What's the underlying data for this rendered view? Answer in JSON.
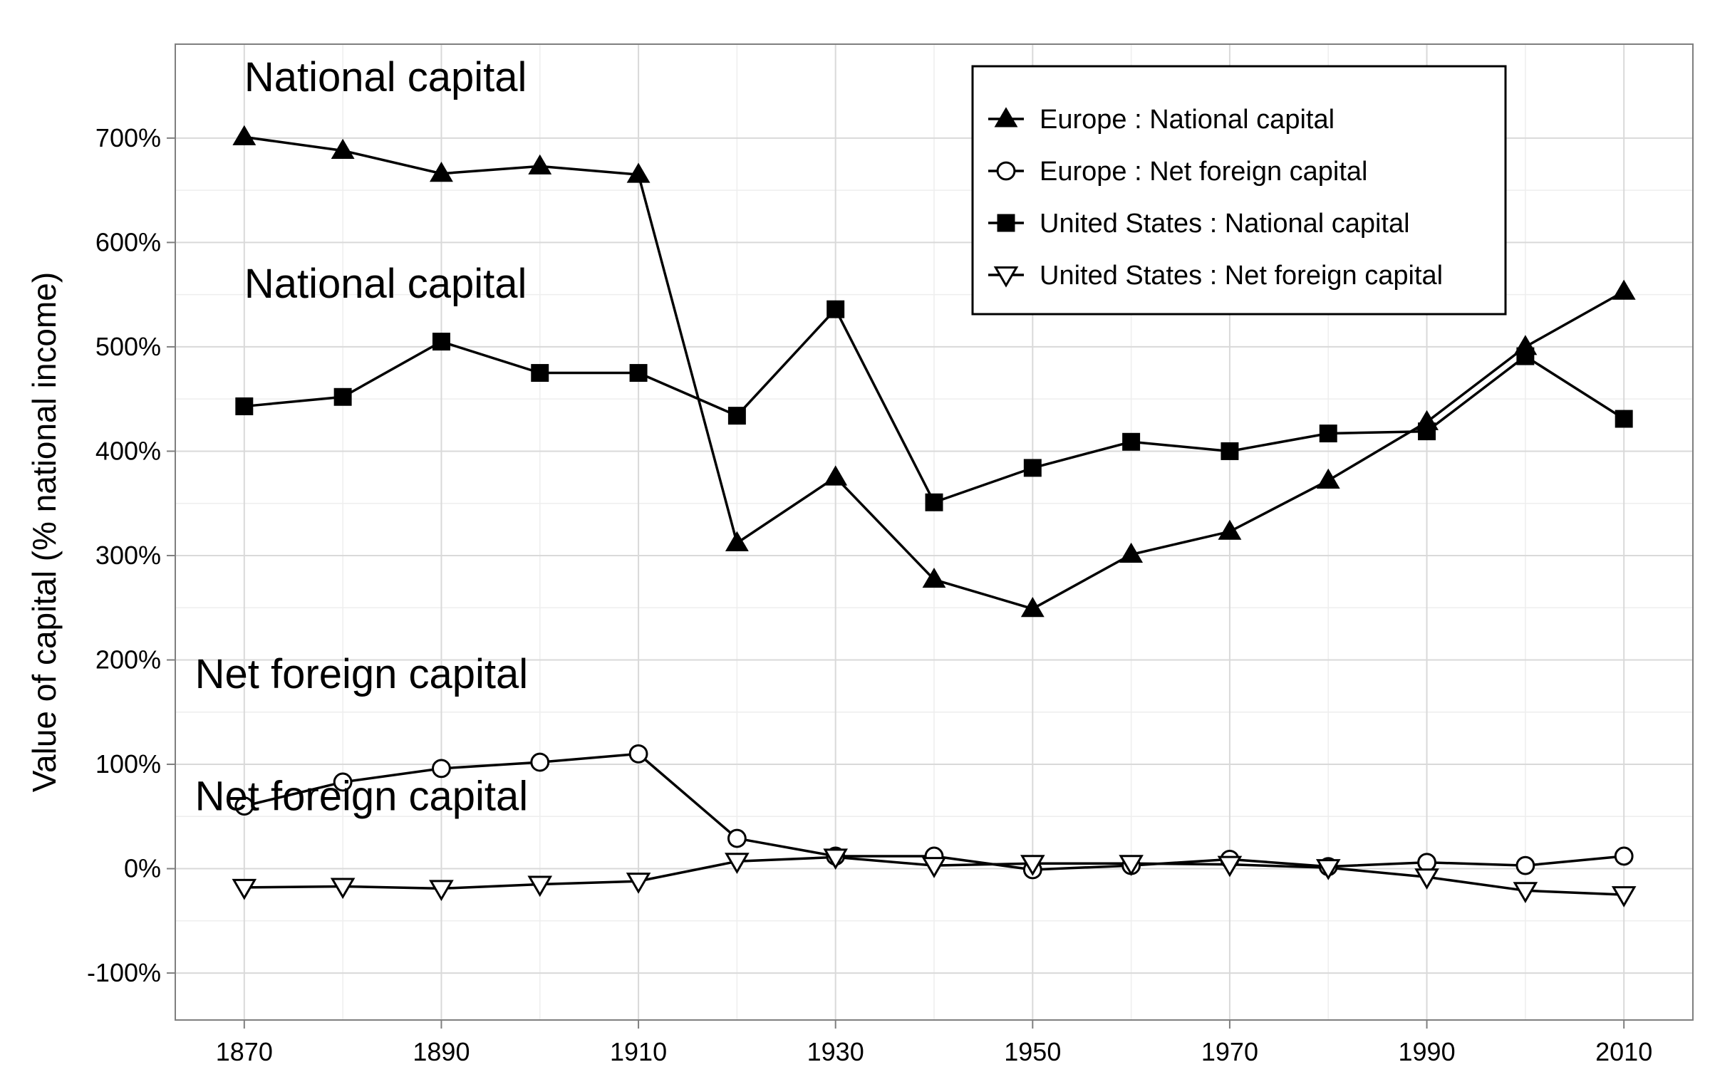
{
  "chart_data": {
    "type": "line",
    "ylabel": "Value of capital (% national income)",
    "xlabel": "",
    "x": [
      1870,
      1880,
      1890,
      1900,
      1910,
      1920,
      1930,
      1940,
      1950,
      1960,
      1970,
      1980,
      1990,
      2000,
      2010
    ],
    "xlim": [
      1863,
      2017
    ],
    "ylim": [
      -145,
      790
    ],
    "x_ticks": [
      1870,
      1890,
      1910,
      1930,
      1950,
      1970,
      1990,
      2010
    ],
    "x_tick_labels": [
      "1870",
      "1890",
      "1910",
      "1930",
      "1950",
      "1970",
      "1990",
      "2010"
    ],
    "y_ticks": [
      -100,
      0,
      100,
      200,
      300,
      400,
      500,
      600,
      700
    ],
    "y_tick_labels": [
      "-100%",
      "0%",
      "100%",
      "200%",
      "300%",
      "400%",
      "500%",
      "600%",
      "700%"
    ],
    "grid": true,
    "legend_position": "top-right",
    "series": [
      {
        "name": "Europe : National capital",
        "marker": "triangle-up-filled",
        "values": [
          701,
          688,
          666,
          673,
          665,
          312,
          375,
          277,
          249,
          301,
          323,
          372,
          428,
          500,
          553
        ]
      },
      {
        "name": "Europe : Net foreign capital",
        "marker": "circle-open",
        "values": [
          60,
          83,
          96,
          102,
          110,
          29,
          12,
          12,
          -1,
          3,
          9,
          2,
          6,
          3,
          12
        ]
      },
      {
        "name": "United States : National capital",
        "marker": "square-filled",
        "values": [
          443,
          452,
          505,
          475,
          475,
          434,
          536,
          351,
          384,
          409,
          400,
          417,
          419,
          491,
          431
        ]
      },
      {
        "name": "United States : Net foreign capital",
        "marker": "triangle-down-open",
        "values": [
          -18,
          -17,
          -19,
          -15,
          -12,
          7,
          11,
          3,
          5,
          5,
          4,
          1,
          -8,
          -21,
          -25
        ]
      }
    ],
    "annotations": [
      {
        "text": "National capital",
        "x": 1870,
        "y": 745
      },
      {
        "text": "National capital",
        "x": 1870,
        "y": 547
      },
      {
        "text": "Net foreign capital",
        "x": 1865,
        "y": 173
      },
      {
        "text": "Net foreign capital",
        "x": 1865,
        "y": 56
      }
    ]
  }
}
